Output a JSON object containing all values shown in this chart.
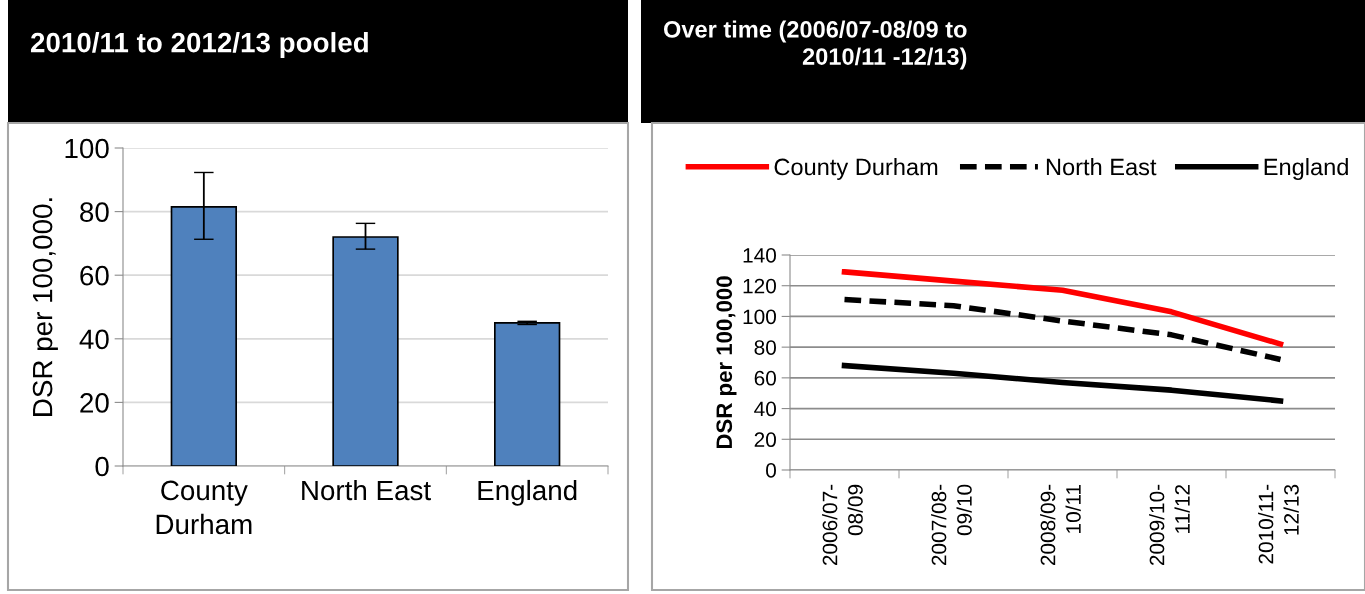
{
  "chart_data": [
    {
      "type": "bar",
      "title": "2010/11 to 2012/13 pooled",
      "ylabel": "DSR per 100,000.",
      "categories": [
        "County\nDurham",
        "North East",
        "England"
      ],
      "values": [
        81.5,
        72,
        45
      ],
      "errors": [
        [
          71.3,
          92.3
        ],
        [
          68.2,
          76.3
        ],
        [
          44.5,
          45.5
        ]
      ],
      "color": "#4f81bd",
      "ylim": [
        0,
        100
      ],
      "yticks": [
        0,
        20,
        40,
        60,
        80,
        100
      ],
      "grid": "y"
    },
    {
      "type": "line",
      "title": "Over time (2006/07-08/09 to\n2010/11 -12/13)",
      "ylabel": "DSR per 100,000",
      "categories": [
        "2006/07-\n08/09",
        "2007/08-\n09/10",
        "2008/09-\n10/11",
        "2009/10-\n11/12",
        "2010/11-\n12/13"
      ],
      "series": [
        {
          "name": "County Durham",
          "color": "#ff0000",
          "line_style": "solid",
          "values": [
            129,
            123,
            117,
            103,
            82
          ]
        },
        {
          "name": "North East",
          "color": "#000000",
          "line_style": "dashed",
          "values": [
            111,
            107,
            97,
            88,
            72
          ]
        },
        {
          "name": "England",
          "color": "#000000",
          "line_style": "solid",
          "values": [
            68,
            63,
            57,
            52,
            45
          ]
        }
      ],
      "ylim": [
        0,
        140
      ],
      "yticks": [
        0,
        20,
        40,
        60,
        80,
        100,
        120,
        140
      ],
      "grid": "y",
      "legend": "top",
      "marker": "none"
    }
  ]
}
